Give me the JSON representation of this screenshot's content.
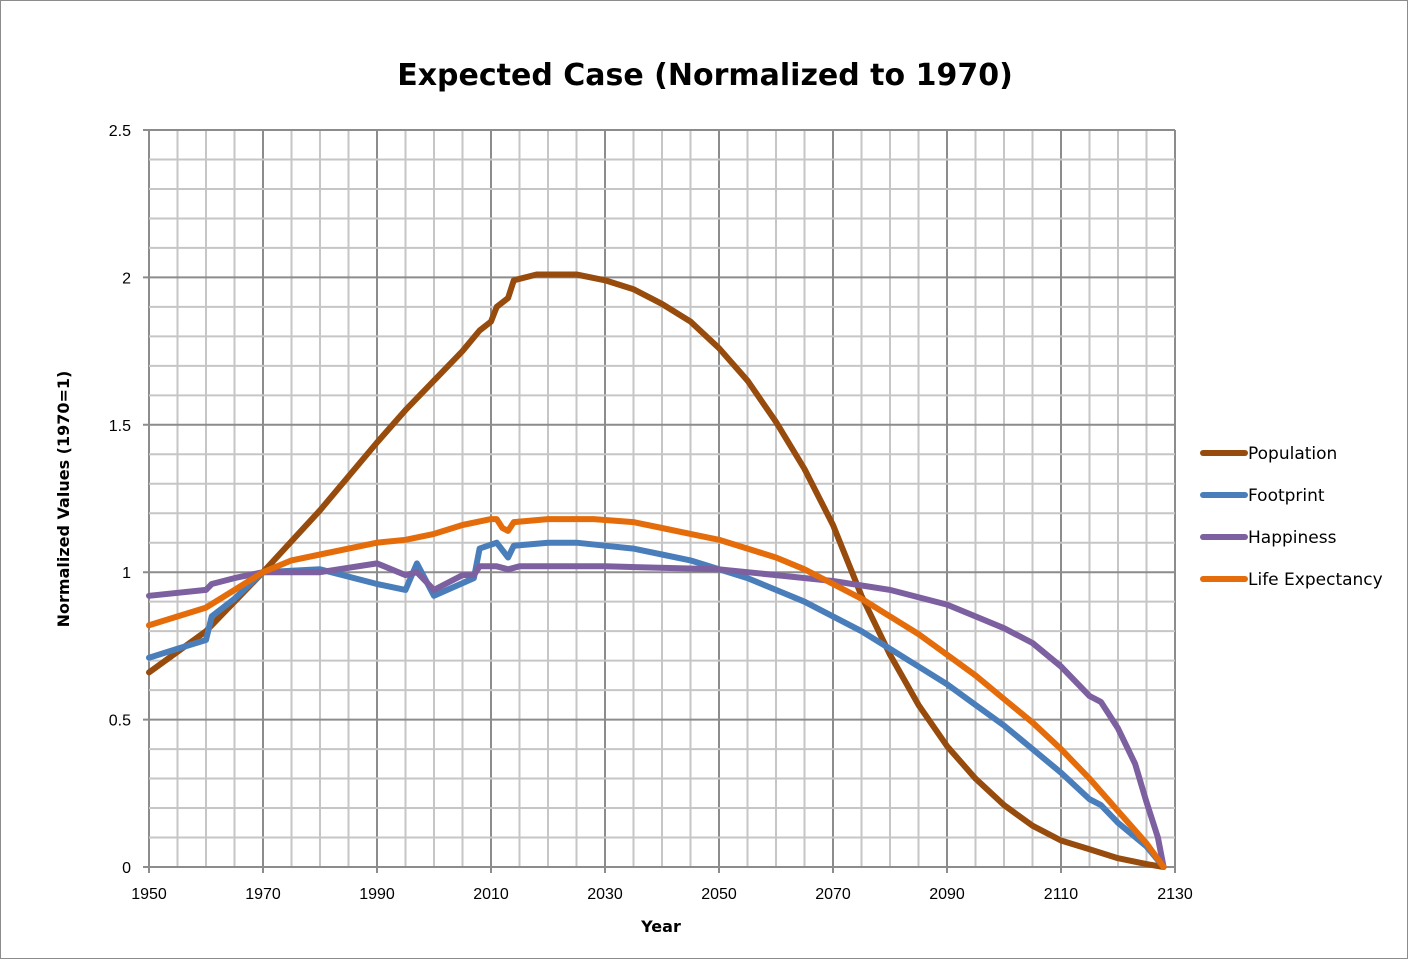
{
  "chart_data": {
    "type": "line",
    "title": "Expected Case (Normalized to 1970)",
    "xlabel": "Year",
    "ylabel": "Normalized Values (1970=1)",
    "xlim": [
      1950,
      2130
    ],
    "ylim": [
      0,
      2.5
    ],
    "x_ticks": [
      "1950",
      "1970",
      "1990",
      "2010",
      "2030",
      "2050",
      "2070",
      "2090",
      "2110",
      "2130"
    ],
    "y_ticks": [
      "0",
      "0.5",
      "1",
      "1.5",
      "2",
      "2.5"
    ],
    "grid": true,
    "legend_position": "right",
    "series": [
      {
        "name": "Population",
        "color": "#974b0c",
        "x": [
          1950,
          1960,
          1970,
          1980,
          1990,
          1995,
          2000,
          2005,
          2008,
          2010,
          2011,
          2013,
          2014,
          2018,
          2025,
          2030,
          2035,
          2040,
          2045,
          2050,
          2055,
          2060,
          2065,
          2070,
          2075,
          2080,
          2085,
          2090,
          2095,
          2100,
          2105,
          2110,
          2115,
          2120,
          2125,
          2128
        ],
        "y": [
          0.66,
          0.8,
          1.0,
          1.21,
          1.44,
          1.55,
          1.65,
          1.75,
          1.82,
          1.85,
          1.9,
          1.93,
          1.99,
          2.01,
          2.01,
          1.99,
          1.96,
          1.91,
          1.85,
          1.76,
          1.65,
          1.51,
          1.35,
          1.16,
          0.92,
          0.72,
          0.55,
          0.41,
          0.3,
          0.21,
          0.14,
          0.09,
          0.06,
          0.03,
          0.01,
          0.0
        ]
      },
      {
        "name": "Footprint",
        "color": "#4a7ebb",
        "x": [
          1950,
          1955,
          1960,
          1961,
          1965,
          1970,
          1980,
          1990,
          1995,
          1997,
          2000,
          2007,
          2008,
          2011,
          2013,
          2014,
          2020,
          2025,
          2030,
          2035,
          2040,
          2045,
          2050,
          2055,
          2060,
          2065,
          2070,
          2075,
          2080,
          2085,
          2090,
          2095,
          2100,
          2105,
          2110,
          2115,
          2117,
          2120,
          2125,
          2128
        ],
        "y": [
          0.71,
          0.74,
          0.77,
          0.85,
          0.91,
          1.0,
          1.01,
          0.96,
          0.94,
          1.03,
          0.92,
          0.98,
          1.08,
          1.1,
          1.05,
          1.09,
          1.1,
          1.1,
          1.09,
          1.08,
          1.06,
          1.04,
          1.01,
          0.98,
          0.94,
          0.9,
          0.85,
          0.8,
          0.74,
          0.68,
          0.62,
          0.55,
          0.48,
          0.4,
          0.32,
          0.23,
          0.21,
          0.15,
          0.07,
          0.0
        ]
      },
      {
        "name": "Happiness",
        "color": "#7d60a0",
        "x": [
          1950,
          1960,
          1961,
          1965,
          1970,
          1980,
          1990,
          1995,
          1997,
          2000,
          2005,
          2007,
          2008,
          2011,
          2013,
          2015,
          2030,
          2050,
          2060,
          2070,
          2080,
          2090,
          2095,
          2100,
          2105,
          2110,
          2115,
          2117,
          2120,
          2123,
          2125,
          2127,
          2128
        ],
        "y": [
          0.92,
          0.94,
          0.96,
          0.98,
          1.0,
          1.0,
          1.03,
          0.99,
          1.0,
          0.94,
          0.99,
          0.99,
          1.02,
          1.02,
          1.01,
          1.02,
          1.02,
          1.01,
          0.99,
          0.97,
          0.94,
          0.89,
          0.85,
          0.81,
          0.76,
          0.68,
          0.58,
          0.56,
          0.47,
          0.35,
          0.22,
          0.1,
          0.0
        ]
      },
      {
        "name": "Life Expectancy",
        "color": "#e46c0a",
        "x": [
          1950,
          1960,
          1965,
          1970,
          1975,
          1980,
          1990,
          1995,
          2000,
          2005,
          2010,
          2011,
          2012,
          2013,
          2014,
          2020,
          2028,
          2035,
          2040,
          2045,
          2050,
          2055,
          2060,
          2065,
          2070,
          2075,
          2080,
          2085,
          2090,
          2095,
          2100,
          2105,
          2110,
          2115,
          2120,
          2125,
          2128
        ],
        "y": [
          0.82,
          0.88,
          0.94,
          1.0,
          1.04,
          1.06,
          1.1,
          1.11,
          1.13,
          1.16,
          1.18,
          1.18,
          1.15,
          1.14,
          1.17,
          1.18,
          1.18,
          1.17,
          1.15,
          1.13,
          1.11,
          1.08,
          1.05,
          1.01,
          0.96,
          0.91,
          0.85,
          0.79,
          0.72,
          0.65,
          0.57,
          0.49,
          0.4,
          0.3,
          0.19,
          0.08,
          0.0
        ]
      }
    ]
  }
}
